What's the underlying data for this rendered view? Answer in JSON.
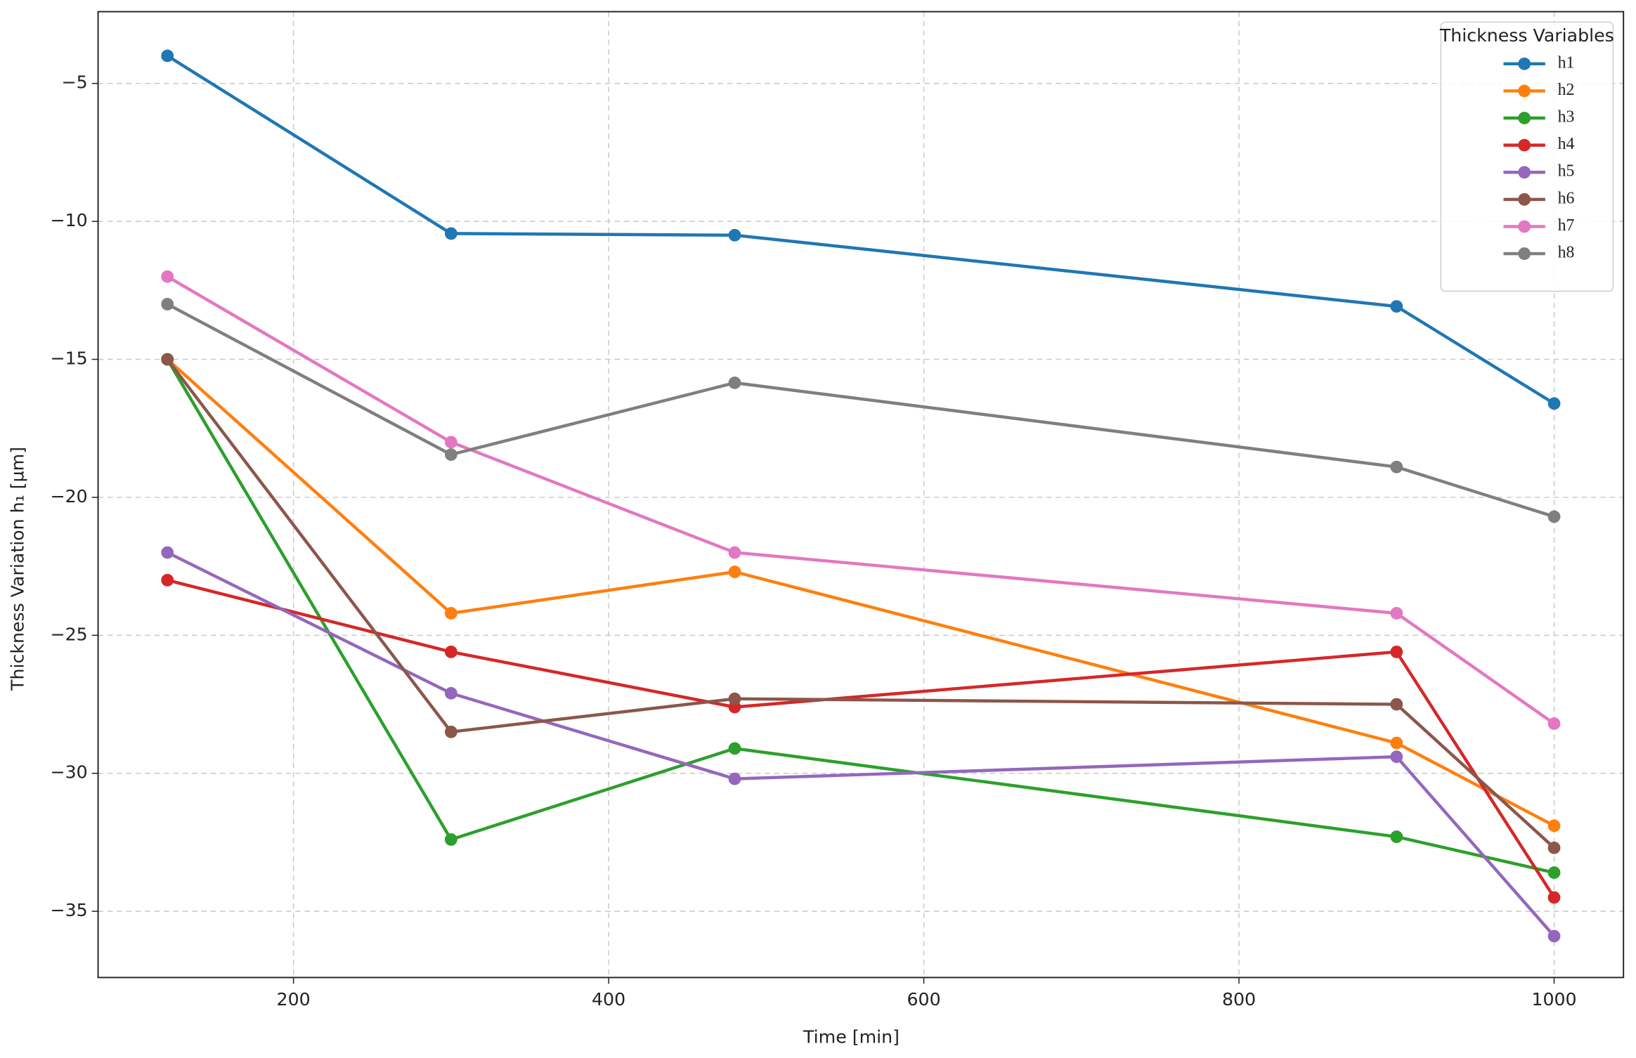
{
  "chart_data": {
    "type": "line",
    "x_label": "Time [min]",
    "y_label": "Thickness Variation h₁ [µm]",
    "legend_title": "Thickness Variables",
    "legend_position": "upper right",
    "grid": true,
    "x": [
      120,
      300,
      480,
      900,
      1000
    ],
    "xlim": [
      76,
      1044
    ],
    "xticks": [
      200,
      400,
      600,
      800,
      1000
    ],
    "ylim": [
      -37.4,
      -2.4
    ],
    "yticks": [
      {
        "value": -35,
        "label": "−35"
      },
      {
        "value": -30,
        "label": "−30"
      },
      {
        "value": -25,
        "label": "−25"
      },
      {
        "value": -20,
        "label": "−20"
      },
      {
        "value": -15,
        "label": "−15"
      },
      {
        "value": -10,
        "label": "−10"
      },
      {
        "value": -5,
        "label": "−5"
      }
    ],
    "series": [
      {
        "name": "h1",
        "color": "#1f77b4",
        "values": [
          -4.0,
          -10.44,
          -10.5,
          -13.08,
          -16.6
        ]
      },
      {
        "name": "h2",
        "color": "#ff7f0e",
        "values": [
          -15.0,
          -24.2,
          -22.7,
          -28.9,
          -31.9
        ]
      },
      {
        "name": "h3",
        "color": "#2ca02c",
        "values": [
          -15.0,
          -32.4,
          -29.1,
          -32.3,
          -33.6
        ]
      },
      {
        "name": "h4",
        "color": "#d62728",
        "values": [
          -23.0,
          -25.6,
          -27.6,
          -25.6,
          -34.5
        ]
      },
      {
        "name": "h5",
        "color": "#9467bd",
        "values": [
          -22.0,
          -27.1,
          -30.2,
          -29.4,
          -35.9
        ]
      },
      {
        "name": "h6",
        "color": "#8c564b",
        "values": [
          -15.0,
          -28.5,
          -27.3,
          -27.5,
          -32.7
        ]
      },
      {
        "name": "h7",
        "color": "#e377c2",
        "values": [
          -12.0,
          -18.0,
          -22.0,
          -24.2,
          -28.2
        ]
      },
      {
        "name": "h8",
        "color": "#7f7f7f",
        "values": [
          -13.0,
          -18.45,
          -15.85,
          -18.9,
          -20.7
        ]
      }
    ]
  }
}
